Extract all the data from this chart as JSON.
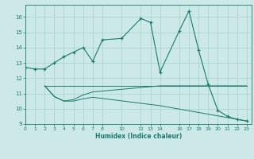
{
  "xlabel": "Humidex (Indice chaleur)",
  "background_color": "#cce9e7",
  "grid_color": "#aad4d0",
  "line_color": "#1a7a6e",
  "line1_x": [
    0,
    1,
    2,
    3,
    4,
    5,
    6,
    7,
    8,
    10,
    12,
    13,
    14,
    16,
    17,
    18,
    19,
    20,
    21,
    22,
    23
  ],
  "line1_y": [
    12.7,
    12.6,
    12.6,
    13.0,
    13.4,
    13.7,
    14.0,
    13.1,
    14.5,
    14.6,
    15.9,
    15.65,
    12.4,
    15.1,
    16.4,
    13.85,
    11.6,
    9.9,
    9.5,
    9.3,
    9.2
  ],
  "line2_x": [
    2,
    3,
    4,
    5,
    6,
    7,
    14,
    23
  ],
  "line2_y": [
    11.5,
    10.8,
    10.5,
    10.6,
    10.9,
    11.1,
    11.5,
    11.5
  ],
  "line3_x": [
    2,
    3,
    4,
    5,
    6,
    7,
    14,
    23
  ],
  "line3_y": [
    11.5,
    10.8,
    10.5,
    10.5,
    10.65,
    10.75,
    10.2,
    9.2
  ],
  "line4_x": [
    2,
    23
  ],
  "line4_y": [
    11.5,
    11.5
  ],
  "xticks": [
    0,
    1,
    2,
    3,
    4,
    5,
    6,
    7,
    8,
    10,
    12,
    13,
    14,
    16,
    17,
    18,
    19,
    20,
    21,
    22,
    23
  ],
  "xlim": [
    0,
    23.5
  ],
  "ylim": [
    9.0,
    16.8
  ],
  "yticks": [
    9,
    10,
    11,
    12,
    13,
    14,
    15,
    16
  ]
}
